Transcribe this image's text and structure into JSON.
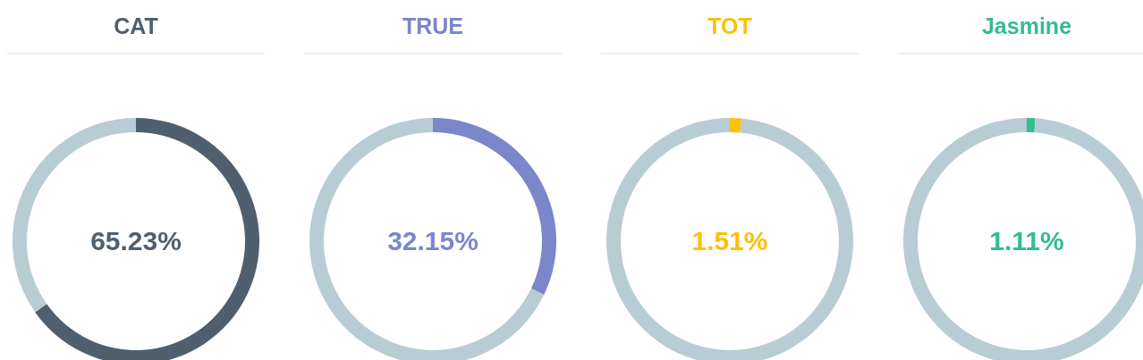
{
  "chart_data": [
    {
      "type": "donut",
      "title": "CAT",
      "categories": [
        null,
        null
      ],
      "values": [
        65.23,
        34.77
      ],
      "colors": [
        "#4f5f6d",
        "#b8ccd4"
      ],
      "annotations": [
        "65.23%"
      ]
    },
    {
      "type": "donut",
      "title": "TRUE",
      "categories": [
        null,
        null
      ],
      "values": [
        32.15,
        67.85
      ],
      "colors": [
        "#7b86cb",
        "#b8ccd4"
      ],
      "annotations": [
        "32.15%"
      ]
    },
    {
      "type": "donut",
      "title": "TOT",
      "categories": [
        null,
        null
      ],
      "values": [
        1.51,
        98.49
      ],
      "colors": [
        "#fcc00a",
        "#b8ccd4"
      ],
      "annotations": [
        "1.51%"
      ]
    },
    {
      "type": "donut",
      "title": "Jasmine",
      "categories": [
        null,
        null
      ],
      "values": [
        1.11,
        98.89
      ],
      "colors": [
        "#33bd8b",
        "#b8ccd4"
      ],
      "annotations": [
        "1.11%"
      ]
    }
  ]
}
